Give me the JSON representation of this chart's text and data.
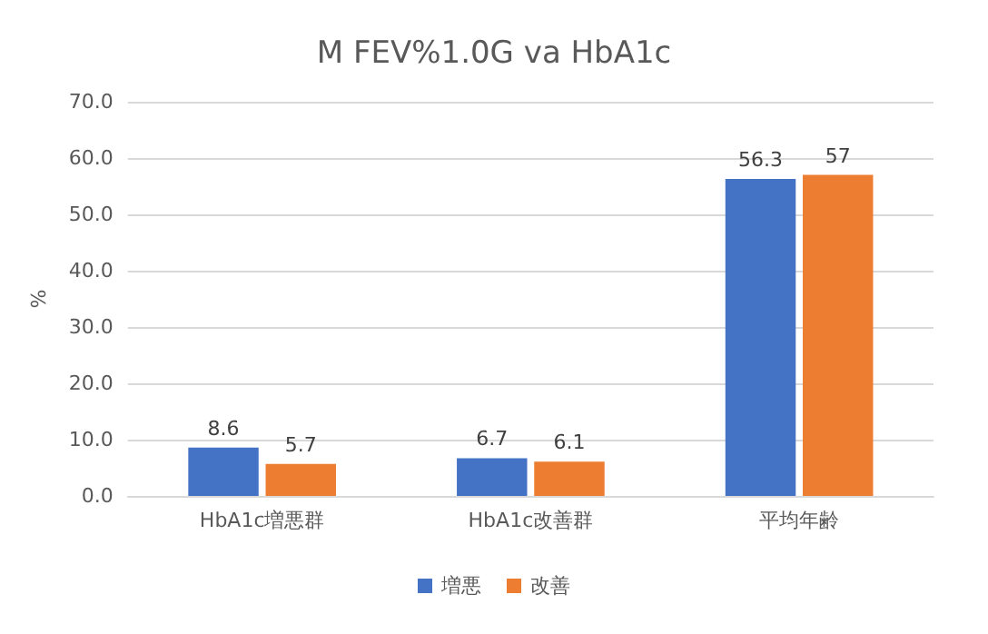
{
  "chart_data": {
    "type": "bar",
    "title": "M FEV%1.0G va HbA1c",
    "ylabel": "%",
    "categories": [
      "HbA1c増悪群",
      "HbA1c改善群",
      "平均年齢"
    ],
    "series": [
      {
        "name": "増悪",
        "color": "#4472c4",
        "values": [
          8.6,
          6.7,
          56.3
        ]
      },
      {
        "name": "改善",
        "color": "#ed7d31",
        "values": [
          5.7,
          6.1,
          57
        ]
      }
    ],
    "ylim": [
      0,
      70
    ],
    "yticks": [
      {
        "value": 0,
        "label": "0.0"
      },
      {
        "value": 10,
        "label": "10.0"
      },
      {
        "value": 20,
        "label": "20.0"
      },
      {
        "value": 30,
        "label": "30.0"
      },
      {
        "value": 40,
        "label": "40.0"
      },
      {
        "value": 50,
        "label": "50.0"
      },
      {
        "value": 60,
        "label": "60.0"
      },
      {
        "value": 70,
        "label": "70.0"
      }
    ],
    "grid": "y",
    "legend": "bottom",
    "data_labels": true
  }
}
